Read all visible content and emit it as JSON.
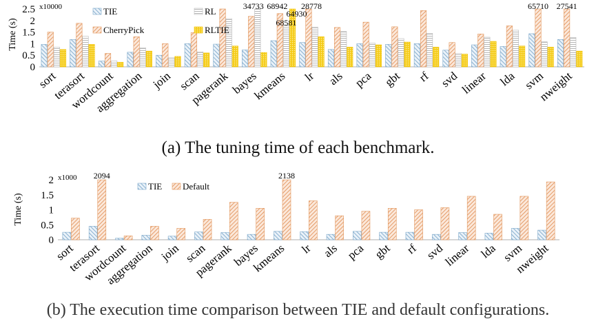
{
  "figure": {
    "caption_a": "(a) The tuning time of each benchmark.",
    "caption_b": "(b) The execution time comparison between TIE and default configurations."
  },
  "colors": {
    "tie": "#7aa6c8",
    "cherrypick": "#e2955a",
    "rl": "#b8b8b8",
    "rltie": "#f2c200",
    "default": "#e2955a",
    "axis": "#bfbfbf"
  },
  "chart_data": [
    {
      "type": "bar",
      "ylabel": "Time (s)",
      "scale_note": "x10000",
      "ylim": [
        0,
        2.5
      ],
      "yticks": [
        "0",
        "0.5",
        "1",
        "1.5",
        "2",
        "2.5"
      ],
      "categories": [
        "sort",
        "terasort",
        "wordcount",
        "aggregation",
        "join",
        "scan",
        "pagerank",
        "bayes",
        "kmeans",
        "lr",
        "als",
        "pca",
        "gbt",
        "rf",
        "svd",
        "linear",
        "lda",
        "svm",
        "nweight"
      ],
      "series": [
        {
          "name": "TIE",
          "values": [
            0.97,
            1.18,
            0.25,
            0.63,
            0.5,
            1.0,
            0.98,
            0.73,
            1.13,
            1.05,
            0.75,
            1.0,
            0.97,
            1.0,
            0.72,
            0.95,
            0.88,
            1.43,
            1.18
          ]
        },
        {
          "name": "CherryPick",
          "values": [
            1.5,
            1.88,
            0.58,
            1.3,
            1.0,
            1.48,
            2.5,
            2.18,
            2.3,
            2.5,
            1.7,
            1.93,
            1.73,
            2.43,
            1.05,
            1.42,
            1.77,
            2.5,
            2.5
          ]
        },
        {
          "name": "RL",
          "values": [
            0.85,
            1.32,
            0.25,
            0.82,
            0.4,
            0.65,
            2.08,
            2.5,
            1.78,
            1.72,
            1.53,
            1.02,
            1.22,
            1.45,
            0.58,
            1.28,
            1.58,
            1.08,
            1.27
          ]
        },
        {
          "name": "RLTIE",
          "values": [
            0.75,
            0.97,
            0.2,
            0.68,
            0.45,
            0.6,
            0.9,
            0.62,
            2.5,
            1.3,
            0.85,
            0.95,
            1.07,
            0.85,
            0.55,
            1.1,
            0.9,
            0.85,
            0.68
          ]
        }
      ],
      "annotations": [
        {
          "text": "34733",
          "category": "bayes",
          "series": "RL"
        },
        {
          "text": "68942",
          "category": "kmeans",
          "series": "CherryPick"
        },
        {
          "text": "68581",
          "category": "kmeans",
          "series": "RL"
        },
        {
          "text": "64930",
          "category": "kmeans",
          "series": "RLTIE"
        },
        {
          "text": "28778",
          "category": "lr",
          "series": "CherryPick"
        },
        {
          "text": "65710",
          "category": "svm",
          "series": "CherryPick"
        },
        {
          "text": "27541",
          "category": "nweight",
          "series": "CherryPick"
        }
      ],
      "legend": "top-left"
    },
    {
      "type": "bar",
      "ylabel": "Time (s)",
      "scale_note": "x1000",
      "ylim": [
        0,
        2
      ],
      "yticks": [
        "0",
        "0.5",
        "1",
        "1.5",
        "2"
      ],
      "categories": [
        "sort",
        "terasort",
        "wordcount",
        "aggregation",
        "join",
        "scan",
        "pagerank",
        "bayes",
        "kmeans",
        "lr",
        "als",
        "pca",
        "gbt",
        "rf",
        "svd",
        "linear",
        "lda",
        "svm",
        "nweight"
      ],
      "series": [
        {
          "name": "TIE",
          "values": [
            0.25,
            0.45,
            0.05,
            0.15,
            0.12,
            0.26,
            0.24,
            0.18,
            0.28,
            0.27,
            0.18,
            0.28,
            0.25,
            0.25,
            0.18,
            0.24,
            0.22,
            0.38,
            0.32
          ]
        },
        {
          "name": "Default",
          "values": [
            0.72,
            2.0,
            0.13,
            0.45,
            0.38,
            0.68,
            1.25,
            1.05,
            2.0,
            1.3,
            0.8,
            0.95,
            1.05,
            1.0,
            1.07,
            1.45,
            0.85,
            1.45,
            1.93
          ]
        }
      ],
      "annotations": [
        {
          "text": "2094",
          "category": "terasort",
          "series": "Default"
        },
        {
          "text": "2138",
          "category": "kmeans",
          "series": "Default"
        }
      ],
      "legend": "top-left"
    }
  ]
}
